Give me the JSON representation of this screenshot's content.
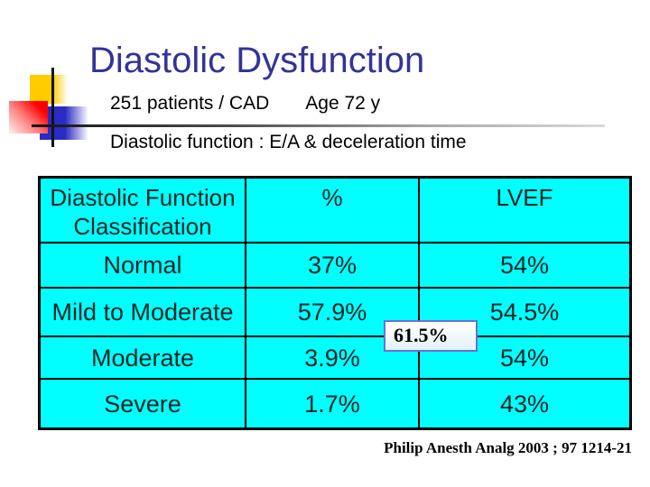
{
  "slide": {
    "title": "Diastolic Dysfunction",
    "subtitle": {
      "patients": "251 patients / CAD",
      "age": "Age 72 y"
    },
    "subheading": "Diastolic function : E/A & deceleration time",
    "citation": "Philip Anesth Analg 2003 ; 97 1214-21"
  },
  "callout": {
    "value": "61.5%",
    "border_color": "#6f6fd0"
  },
  "table": {
    "headers": {
      "classification": "Diastolic Function Classification",
      "percent": "%",
      "lvef": "LVEF"
    },
    "rows": [
      {
        "classification": "Normal",
        "percent": "37%",
        "lvef": "54%"
      },
      {
        "classification": "Mild to Moderate",
        "percent": "57.9%",
        "lvef": "54.5%"
      },
      {
        "classification": "Moderate",
        "percent": "3.9%",
        "lvef": "54%"
      },
      {
        "classification": "Severe",
        "percent": "1.7%",
        "lvef": "43%"
      }
    ]
  },
  "colors": {
    "title": "#333399",
    "table_background": "#00ffff",
    "table_border": "#000000",
    "accent_yellow": "#ffcc00",
    "accent_red": "#ff0000",
    "accent_blue": "#2b2bc4",
    "callout_border": "#6f6fd0"
  }
}
